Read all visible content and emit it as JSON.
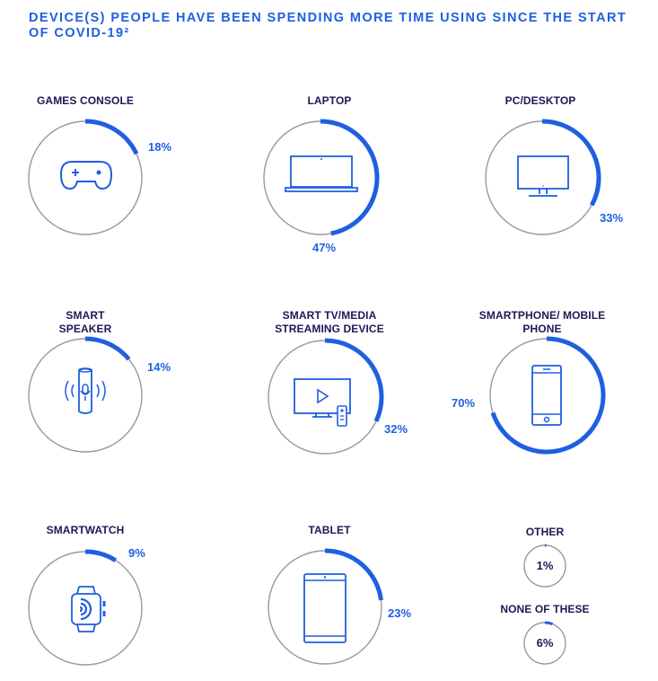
{
  "title": "DEVICE(S) PEOPLE HAVE BEEN SPENDING MORE TIME USING SINCE THE START OF COVID-19²",
  "colors": {
    "accent": "#1f5fe0",
    "ring": "#9a9a9a",
    "label": "#1a1a55",
    "icon": "#1f5fe0"
  },
  "chart_data": {
    "type": "radial-progress",
    "unit": "%",
    "items": [
      {
        "label": "GAMES CONSOLE",
        "value": 18,
        "display": "18%",
        "icon": "gamepad-icon"
      },
      {
        "label": "LAPTOP",
        "value": 47,
        "display": "47%",
        "icon": "laptop-icon"
      },
      {
        "label": "PC/DESKTOP",
        "value": 33,
        "display": "33%",
        "icon": "monitor-icon"
      },
      {
        "label": "SMART SPEAKER",
        "value": 14,
        "display": "14%",
        "icon": "smart-speaker-icon"
      },
      {
        "label": "SMART TV/MEDIA STREAMING DEVICE",
        "value": 32,
        "display": "32%",
        "icon": "tv-remote-icon"
      },
      {
        "label": "SMARTPHONE/ MOBILE PHONE",
        "value": 70,
        "display": "70%",
        "icon": "smartphone-icon"
      },
      {
        "label": "SMARTWATCH",
        "value": 9,
        "display": "9%",
        "icon": "smartwatch-icon"
      },
      {
        "label": "TABLET",
        "value": 23,
        "display": "23%",
        "icon": "tablet-icon"
      },
      {
        "label": "OTHER",
        "value": 1,
        "display": "1%",
        "icon": ""
      },
      {
        "label": "NONE OF THESE",
        "value": 6,
        "display": "6%",
        "icon": ""
      }
    ]
  }
}
